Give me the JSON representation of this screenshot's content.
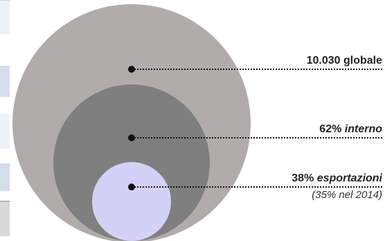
{
  "colors": {
    "outer": "#b1acac",
    "middle": "#7f7f7f",
    "inner": "#d3d2f6",
    "dots": "#111111",
    "side_light": "#eef1f8",
    "side_dark": "#d5deed",
    "side_bottom": "#d9d9d9"
  },
  "labels": {
    "global": {
      "value": "10.030",
      "text": "globale"
    },
    "internal": {
      "value": "62%",
      "text": "interno"
    },
    "exports": {
      "value": "38%",
      "text": "esportazioni",
      "sub": "(35% nel 2014)"
    }
  }
}
